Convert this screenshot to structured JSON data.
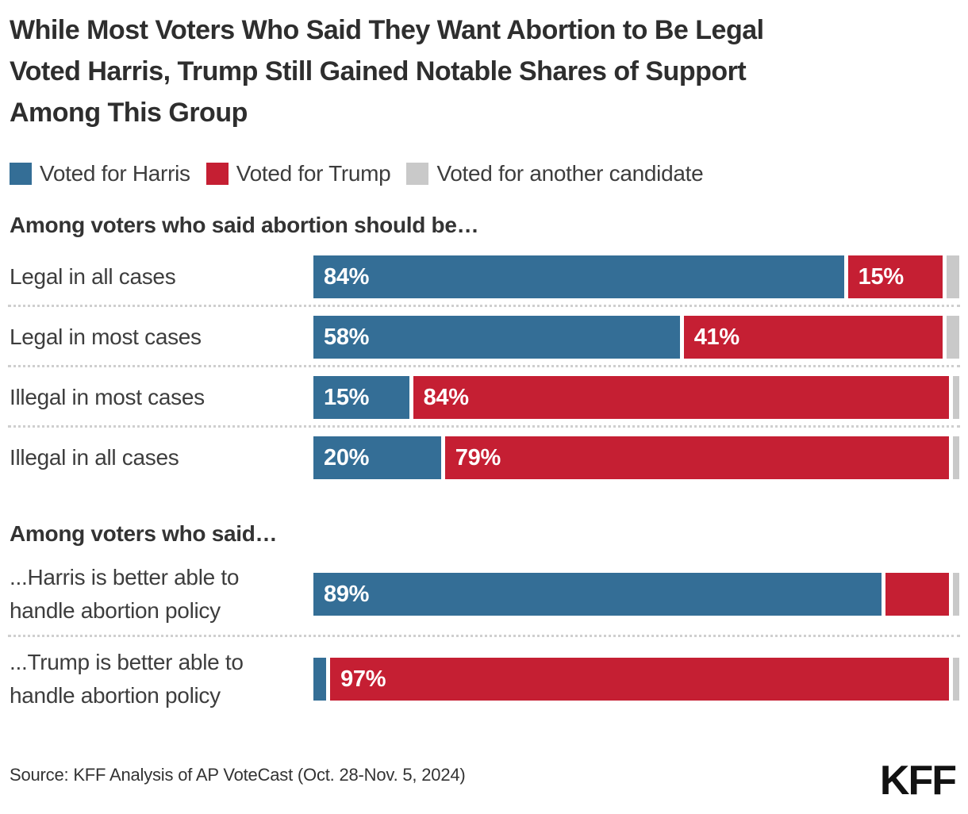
{
  "title_lines": [
    "While Most Voters Who Said They Want Abortion to Be Legal",
    "Voted Harris, Trump Still Gained Notable Shares of Support",
    "Among This Group"
  ],
  "legend": {
    "items": [
      {
        "label": "Voted for Harris",
        "color": "#346e96"
      },
      {
        "label": "Voted for Trump",
        "color": "#c51f33"
      },
      {
        "label": "Voted for another candidate",
        "color": "#c9c9c9"
      }
    ]
  },
  "colors": {
    "harris_blue": "#346e96",
    "trump_red": "#c51f33",
    "other_gray": "#c9c9c9",
    "title_text": "#2e2e2e",
    "label_text": "#3d3d3d",
    "separator": "#cfcfcf",
    "background": "#ffffff"
  },
  "source": "Source: KFF Analysis of AP VoteCast (Oct. 28-Nov. 5, 2024)",
  "logo_text": "KFF",
  "chart_data": {
    "type": "bar",
    "subtype": "horizontal-stacked",
    "unit": "percent",
    "xlim": [
      0,
      100
    ],
    "legend_position": "top",
    "grid": false,
    "series_names": [
      "Voted for Harris",
      "Voted for Trump",
      "Voted for another candidate"
    ],
    "groups": [
      {
        "header": "Among voters who said abortion should be…",
        "rows": [
          {
            "label": "Legal in all cases",
            "harris": 84,
            "trump": 15,
            "other": 2,
            "harris_label": "84%",
            "trump_label": "15%"
          },
          {
            "label": "Legal in most cases",
            "harris": 58,
            "trump": 41,
            "other": 2,
            "harris_label": "58%",
            "trump_label": "41%"
          },
          {
            "label": "Illegal in most cases",
            "harris": 15,
            "trump": 84,
            "other": 1,
            "harris_label": "15%",
            "trump_label": "84%"
          },
          {
            "label": "Illegal in all cases",
            "harris": 20,
            "trump": 79,
            "other": 1,
            "harris_label": "20%",
            "trump_label": "79%"
          }
        ]
      },
      {
        "header": "Among voters who said…",
        "rows": [
          {
            "label": "...Harris is better able to handle abortion policy",
            "harris": 89,
            "trump": 10,
            "other": 1,
            "harris_label": "89%",
            "trump_label": ""
          },
          {
            "label": "...Trump is better able to handle abortion policy",
            "harris": 2,
            "trump": 97,
            "other": 1,
            "harris_label": "",
            "trump_label": "97%"
          }
        ]
      }
    ]
  }
}
